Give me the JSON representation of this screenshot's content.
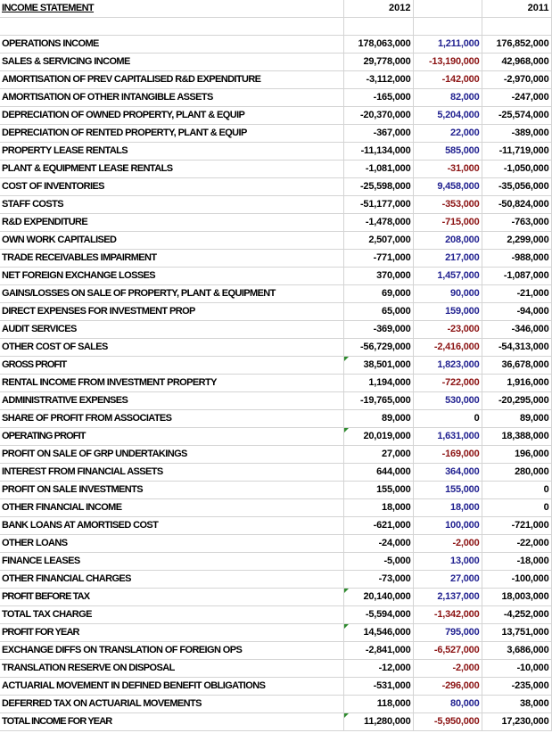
{
  "header": {
    "title": "INCOME STATEMENT",
    "year_a": "2012",
    "year_b": "2011"
  },
  "colors": {
    "positive_change": "#1f1f8f",
    "negative_change": "#8b1212",
    "error_marker": "#2e8b2e"
  },
  "rows": [
    {
      "label": "OPERATIONS INCOME",
      "v2012": "178,063,000",
      "change": "1,211,000",
      "v2011": "176,852,000"
    },
    {
      "label": "SALES & SERVICING  INCOME",
      "v2012": "29,778,000",
      "change": "-13,190,000",
      "v2011": "42,968,000"
    },
    {
      "label": "AMORTISATION OF PREV CAPITALISED R&D EXPENDITURE",
      "v2012": "-3,112,000",
      "change": "-142,000",
      "v2011": "-2,970,000"
    },
    {
      "label": "AMORTISATION OF OTHER INTANGIBLE ASSETS",
      "v2012": "-165,000",
      "change": "82,000",
      "v2011": "-247,000"
    },
    {
      "label": "DEPRECIATION OF OWNED PROPERTY, PLANT & EQUIP",
      "v2012": "-20,370,000",
      "change": "5,204,000",
      "v2011": "-25,574,000"
    },
    {
      "label": "DEPRECIATION OF RENTED PROPERTY, PLANT & EQUIP",
      "v2012": "-367,000",
      "change": "22,000",
      "v2011": "-389,000"
    },
    {
      "label": "PROPERTY LEASE RENTALS",
      "v2012": "-11,134,000",
      "change": "585,000",
      "v2011": "-11,719,000"
    },
    {
      "label": "PLANT & EQUIPMENT LEASE RENTALS",
      "v2012": "-1,081,000",
      "change": "-31,000",
      "v2011": "-1,050,000"
    },
    {
      "label": "COST OF INVENTORIES",
      "v2012": "-25,598,000",
      "change": "9,458,000",
      "v2011": "-35,056,000"
    },
    {
      "label": "STAFF COSTS",
      "v2012": "-51,177,000",
      "change": "-353,000",
      "v2011": "-50,824,000"
    },
    {
      "label": "R&D EXPENDITURE",
      "v2012": "-1,478,000",
      "change": "-715,000",
      "v2011": "-763,000"
    },
    {
      "label": "OWN WORK CAPITALISED",
      "v2012": "2,507,000",
      "change": "208,000",
      "v2011": "2,299,000"
    },
    {
      "label": "TRADE RECEIVABLES IMPAIRMENT",
      "v2012": "-771,000",
      "change": "217,000",
      "v2011": "-988,000"
    },
    {
      "label": "NET FOREIGN EXCHANGE LOSSES",
      "v2012": "370,000",
      "change": "1,457,000",
      "v2011": "-1,087,000"
    },
    {
      "label": "GAINS/LOSSES ON SALE OF PROPERTY, PLANT & EQUIPMENT",
      "v2012": "69,000",
      "change": "90,000",
      "v2011": "-21,000"
    },
    {
      "label": "DIRECT EXPENSES FOR INVESTMENT PROP",
      "v2012": "65,000",
      "change": "159,000",
      "v2011": "-94,000"
    },
    {
      "label": "AUDIT SERVICES",
      "v2012": "-369,000",
      "change": "-23,000",
      "v2011": "-346,000"
    },
    {
      "label": "OTHER COST OF SALES",
      "v2012": "-56,729,000",
      "change": "-2,416,000",
      "v2011": "-54,313,000"
    },
    {
      "label": "GROSS PROFIT",
      "v2012": "38,501,000",
      "change": "1,823,000",
      "v2011": "36,678,000",
      "bold": true,
      "marker": true
    },
    {
      "label": "RENTAL INCOME FROM INVESTMENT PROPERTY",
      "v2012": "1,194,000",
      "change": "-722,000",
      "v2011": "1,916,000"
    },
    {
      "label": "ADMINISTRATIVE EXPENSES",
      "v2012": "-19,765,000",
      "change": "530,000",
      "v2011": "-20,295,000"
    },
    {
      "label": "SHARE OF PROFIT FROM ASSOCIATES",
      "v2012": "89,000",
      "change": "0",
      "v2011": "89,000"
    },
    {
      "label": "OPERATING PROFIT",
      "v2012": "20,019,000",
      "change": "1,631,000",
      "v2011": "18,388,000",
      "bold": true,
      "marker": true
    },
    {
      "label": "PROFIT ON SALE OF GRP UNDERTAKINGS",
      "v2012": "27,000",
      "change": "-169,000",
      "v2011": "196,000"
    },
    {
      "label": "INTEREST FROM FINANCIAL ASSETS",
      "v2012": "644,000",
      "change": "364,000",
      "v2011": "280,000"
    },
    {
      "label": "PROFIT ON SALE INVESTMENTS",
      "v2012": "155,000",
      "change": "155,000",
      "v2011": "0"
    },
    {
      "label": "OTHER FINANCIAL INCOME",
      "v2012": "18,000",
      "change": "18,000",
      "v2011": "0"
    },
    {
      "label": "BANK LOANS AT AMORTISED COST",
      "v2012": "-621,000",
      "change": "100,000",
      "v2011": "-721,000"
    },
    {
      "label": "OTHER LOANS",
      "v2012": "-24,000",
      "change": "-2,000",
      "v2011": "-22,000"
    },
    {
      "label": "FINANCE LEASES",
      "v2012": "-5,000",
      "change": "13,000",
      "v2011": "-18,000"
    },
    {
      "label": "OTHER FINANCIAL CHARGES",
      "v2012": "-73,000",
      "change": "27,000",
      "v2011": "-100,000"
    },
    {
      "label": "PROFIT BEFORE TAX",
      "v2012": "20,140,000",
      "change": "2,137,000",
      "v2011": "18,003,000",
      "bold": true,
      "marker": true
    },
    {
      "label": "TOTAL TAX CHARGE",
      "v2012": "-5,594,000",
      "change": "-1,342,000",
      "v2011": "-4,252,000"
    },
    {
      "label": "PROFIT FOR YEAR",
      "v2012": "14,546,000",
      "change": "795,000",
      "v2011": "13,751,000",
      "bold": true,
      "marker": true
    },
    {
      "label": "EXCHANGE DIFFS ON TRANSLATION OF FOREIGN OPS",
      "v2012": "-2,841,000",
      "change": "-6,527,000",
      "v2011": "3,686,000"
    },
    {
      "label": "TRANSLATION RESERVE ON DISPOSAL",
      "v2012": "-12,000",
      "change": "-2,000",
      "v2011": "-10,000"
    },
    {
      "label": "ACTUARIAL MOVEMENT IN DEFINED BENEFIT OBLIGATIONS",
      "v2012": "-531,000",
      "change": "-296,000",
      "v2011": "-235,000"
    },
    {
      "label": "DEFERRED TAX ON ACTUARIAL MOVEMENTS",
      "v2012": "118,000",
      "change": "80,000",
      "v2011": "38,000"
    },
    {
      "label": "TOTAL INCOME FOR YEAR",
      "v2012": "11,280,000",
      "change": "-5,950,000",
      "v2011": "17,230,000",
      "bold": true,
      "marker": true
    }
  ]
}
